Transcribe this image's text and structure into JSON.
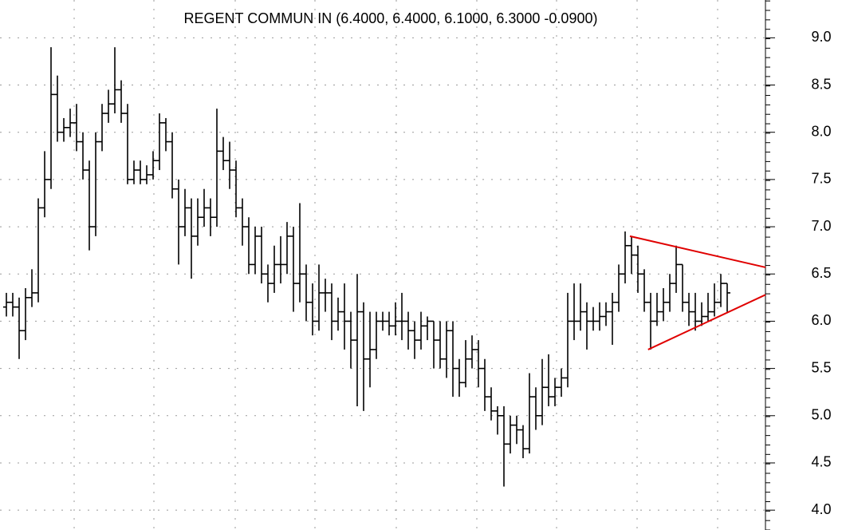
{
  "chart_data": {
    "type": "ohlc",
    "subtitle": "REGENT COMMUN IN (6.4000, 6.4000, 6.1000, 6.3000 -0.0900)",
    "color": "#000000",
    "open": [
      6.15,
      6.2,
      6.15,
      5.9,
      6.25,
      6.3,
      7.2,
      7.5,
      8.4,
      8.0,
      8.05,
      8.1,
      7.9,
      7.6,
      7.0,
      7.9,
      8.2,
      8.3,
      8.45,
      8.2,
      7.5,
      7.6,
      7.5,
      7.55,
      7.7,
      8.1,
      7.9,
      7.4,
      7.0,
      7.2,
      6.9,
      7.1,
      7.2,
      7.1,
      7.8,
      7.7,
      7.6,
      7.2,
      7.0,
      6.6,
      6.9,
      6.5,
      6.4,
      6.6,
      6.6,
      6.9,
      6.4,
      6.5,
      6.2,
      6.0,
      6.3,
      6.3,
      6.0,
      6.1,
      6.0,
      5.8,
      6.1,
      5.6,
      5.7,
      6.0,
      6.0,
      5.95,
      6.0,
      6.0,
      5.9,
      5.8,
      5.95,
      6.0,
      5.8,
      5.6,
      5.9,
      5.5,
      5.35,
      5.6,
      5.7,
      5.5,
      5.2,
      5.05,
      5.0,
      4.7,
      4.9,
      4.85,
      4.65,
      5.2,
      5.0,
      5.3,
      5.2,
      5.3,
      5.4,
      6.0,
      6.0,
      6.1,
      6.0,
      6.0,
      6.05,
      6.1,
      6.2,
      6.5,
      6.8,
      6.7,
      6.5,
      6.2,
      6.0,
      6.1,
      6.2,
      6.4,
      6.6,
      6.2,
      6.1,
      6.0,
      6.05,
      6.1,
      6.2,
      6.4
    ],
    "high": [
      6.3,
      6.3,
      6.25,
      6.35,
      6.55,
      7.3,
      7.8,
      8.9,
      8.6,
      8.15,
      8.25,
      8.3,
      8.0,
      7.7,
      8.0,
      8.3,
      8.45,
      8.9,
      8.55,
      8.3,
      7.7,
      7.7,
      7.65,
      7.8,
      8.2,
      8.15,
      8.0,
      7.5,
      7.4,
      7.3,
      7.3,
      7.4,
      7.3,
      8.25,
      7.95,
      7.9,
      7.7,
      7.3,
      7.1,
      7.0,
      7.0,
      6.6,
      6.8,
      6.9,
      7.05,
      7.0,
      7.25,
      6.6,
      6.4,
      6.6,
      6.45,
      6.4,
      6.25,
      6.4,
      6.1,
      6.5,
      6.2,
      6.1,
      6.1,
      6.1,
      6.1,
      6.2,
      6.3,
      6.1,
      6.0,
      6.1,
      6.05,
      6.0,
      6.0,
      6.0,
      6.0,
      5.6,
      5.8,
      5.85,
      5.8,
      5.6,
      5.3,
      5.1,
      5.1,
      5.0,
      5.0,
      4.9,
      5.45,
      5.3,
      5.6,
      5.65,
      5.4,
      5.5,
      6.3,
      6.4,
      6.4,
      6.2,
      6.15,
      6.2,
      6.2,
      6.3,
      6.6,
      6.95,
      6.9,
      6.8,
      6.55,
      6.3,
      6.3,
      6.35,
      6.5,
      6.8,
      6.6,
      6.3,
      6.3,
      6.2,
      6.3,
      6.4,
      6.5,
      6.4
    ],
    "low": [
      6.05,
      6.05,
      5.6,
      5.8,
      6.15,
      6.2,
      7.1,
      7.4,
      7.9,
      7.9,
      7.95,
      7.8,
      7.5,
      6.75,
      6.9,
      7.8,
      8.1,
      8.2,
      8.1,
      7.45,
      7.45,
      7.45,
      7.45,
      7.5,
      7.6,
      7.8,
      7.3,
      6.6,
      6.9,
      6.45,
      6.8,
      7.0,
      6.9,
      7.0,
      7.6,
      7.4,
      7.1,
      6.8,
      6.5,
      6.5,
      6.4,
      6.2,
      6.3,
      6.4,
      6.5,
      6.1,
      6.2,
      6.0,
      5.85,
      5.9,
      6.1,
      5.8,
      5.9,
      5.7,
      5.5,
      5.1,
      5.05,
      5.3,
      5.6,
      5.9,
      5.85,
      5.85,
      5.8,
      5.7,
      5.6,
      5.7,
      5.8,
      5.5,
      5.5,
      5.4,
      5.2,
      5.2,
      5.3,
      5.5,
      5.3,
      5.05,
      4.95,
      4.8,
      4.25,
      4.6,
      4.7,
      4.55,
      4.6,
      4.85,
      4.9,
      5.1,
      5.1,
      5.2,
      5.3,
      5.8,
      5.9,
      5.7,
      5.9,
      5.9,
      5.95,
      5.75,
      6.1,
      6.4,
      6.5,
      6.3,
      6.1,
      5.7,
      5.95,
      6.0,
      6.1,
      6.3,
      6.1,
      5.95,
      5.9,
      5.95,
      6.0,
      6.05,
      6.15,
      6.1
    ],
    "close": [
      6.2,
      6.15,
      5.9,
      6.25,
      6.3,
      7.2,
      7.5,
      8.4,
      8.0,
      8.05,
      8.1,
      7.9,
      7.6,
      7.0,
      7.9,
      8.2,
      8.3,
      8.45,
      8.2,
      7.5,
      7.6,
      7.5,
      7.55,
      7.7,
      8.1,
      7.9,
      7.4,
      7.0,
      7.2,
      6.9,
      7.1,
      7.2,
      7.1,
      7.8,
      7.7,
      7.6,
      7.2,
      7.0,
      6.6,
      6.9,
      6.5,
      6.4,
      6.6,
      6.6,
      6.9,
      6.4,
      6.5,
      6.2,
      6.0,
      6.3,
      6.3,
      6.0,
      6.1,
      6.0,
      5.8,
      6.1,
      5.6,
      5.7,
      6.0,
      6.0,
      5.95,
      6.0,
      6.0,
      5.9,
      5.8,
      5.95,
      6.0,
      5.8,
      5.6,
      5.9,
      5.5,
      5.35,
      5.6,
      5.7,
      5.5,
      5.2,
      5.05,
      5.0,
      4.7,
      4.9,
      4.85,
      4.65,
      5.2,
      5.0,
      5.3,
      5.2,
      5.3,
      5.4,
      6.0,
      6.0,
      6.1,
      6.0,
      6.0,
      6.05,
      6.1,
      6.2,
      6.5,
      6.8,
      6.7,
      6.5,
      6.2,
      6.0,
      6.1,
      6.2,
      6.4,
      6.6,
      6.2,
      6.1,
      6.0,
      6.05,
      6.1,
      6.2,
      6.4,
      6.3
    ],
    "xlim": [
      0,
      120
    ],
    "ylim": [
      3.79,
      9.4
    ],
    "yticks": [
      {
        "value": 4,
        "label": "4.0"
      },
      {
        "value": 4.5,
        "label": "4.5"
      },
      {
        "value": 5,
        "label": "5.0"
      },
      {
        "value": 5.5,
        "label": "5.5"
      },
      {
        "value": 6,
        "label": "6.0"
      },
      {
        "value": 6.5,
        "label": "6.5"
      },
      {
        "value": 7,
        "label": "7.0"
      },
      {
        "value": 7.5,
        "label": "7.5"
      },
      {
        "value": 8,
        "label": "8.0"
      },
      {
        "value": 8.5,
        "label": "8.5"
      },
      {
        "value": 9,
        "label": "9.0"
      }
    ],
    "grid": true,
    "trendlines": [
      {
        "color": "#e00000",
        "x": [
          98.75,
          120
        ],
        "y": [
          6.9,
          6.57
        ]
      },
      {
        "color": "#e00000",
        "x": [
          101.6,
          120
        ],
        "y": [
          5.7,
          6.28
        ]
      }
    ]
  }
}
